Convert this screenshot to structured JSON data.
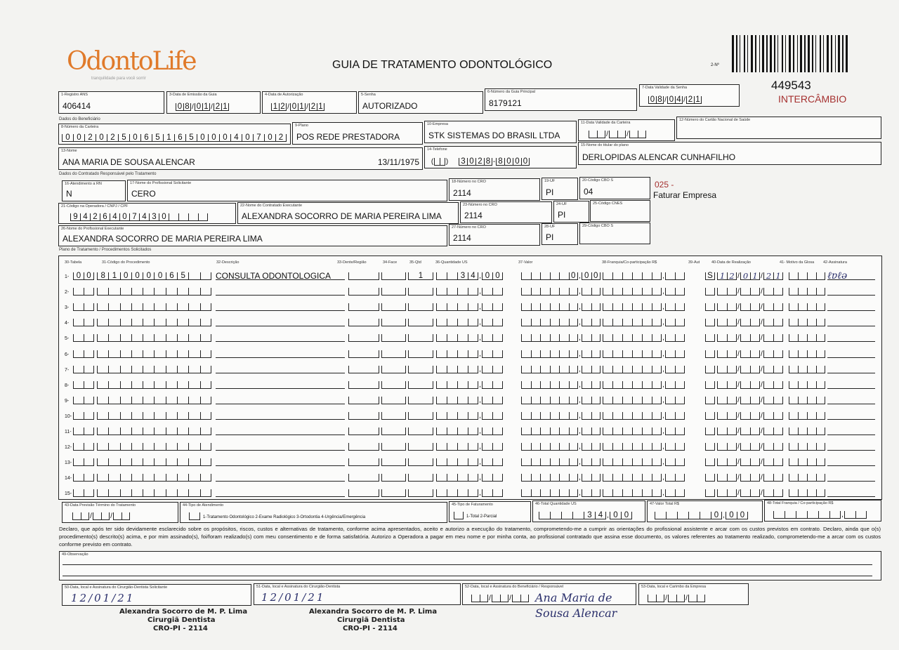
{
  "header": {
    "logo_text": "OdontoLife",
    "logo_tagline": "tranquilidade para você sorrir",
    "title": "GUIA DE TRATAMENTO ODONTOLÓGICO",
    "guia_number_label": "2-Nº",
    "guia_number": "449543",
    "intercambio": "INTERCÂMBIO",
    "accent_color": "#e07a2a",
    "intercambio_color": "#a5302f"
  },
  "fields": {
    "registro_ans": {
      "label": "1-Registro ANS",
      "value": "406414"
    },
    "data_emissao": {
      "label": "3-Data de Emissão da Guia",
      "value": [
        "08",
        "01",
        "21"
      ]
    },
    "data_autorizacao": {
      "label": "4-Data de Autorização",
      "value": [
        "12",
        "01",
        "21"
      ]
    },
    "senha": {
      "label": "5-Senha",
      "value": "AUTORIZADO"
    },
    "guia_principal": {
      "label": "6-Número da Guia Principal",
      "value": "8179121"
    },
    "validade_senha": {
      "label": "7-Data Validade da Senha",
      "value": [
        "08",
        "04",
        "21"
      ]
    },
    "section_beneficiario": "Dados do Beneficiário",
    "numero_carteira": {
      "label": "8-Número da Carteira",
      "value": "00202506516500040702"
    },
    "plano": {
      "label": "9-Plano",
      "value": "POS REDE PRESTADORA"
    },
    "empresa": {
      "label": "10-Empresa",
      "value": "STK SISTEMAS DO BRASIL LTDA"
    },
    "validade_carteira": {
      "label": "11-Data Validade da Carteira",
      "value": [
        "",
        "",
        ""
      ]
    },
    "cartao_nacional": {
      "label": "12-Número do Cartão Nacional de Saúde",
      "value": ""
    },
    "nome": {
      "label": "13-Nome",
      "value": "ANA MARIA DE SOUSA ALENCAR",
      "birth": "13/11/1975"
    },
    "telefone": {
      "label": "14-Telefone",
      "ddd": "",
      "value": "3028-8000"
    },
    "titular": {
      "label": "15-Nome do titular do plano",
      "value": "DERLOPIDAS ALENCAR CUNHAFILHO"
    },
    "section_contratado": "Dados do Contratado Responsável pelo Tratamento",
    "atendimento_rn": {
      "label": "16-Atendimento a RN",
      "value": "N"
    },
    "profissional_solicitante": {
      "label": "17-Nome do Profissional Solicitante",
      "value": "CERO"
    },
    "cro_18": {
      "label": "18-Número no CRO",
      "value": "2114"
    },
    "uf_19": {
      "label": "19-UF",
      "value": "PI"
    },
    "cbo_20": {
      "label": "20-Código CBO S",
      "value": "04"
    },
    "faturar_code": "025 -",
    "faturar_text": "Faturar Empresa",
    "codigo_operadora": {
      "label": "21-Código na Operadora / CNPJ / CPF",
      "value": "9426407430"
    },
    "contratado_executante": {
      "label": "22-Nome do Contratado Executante",
      "value": "ALEXANDRA SOCORRO DE MARIA PEREIRA LIMA"
    },
    "cro_23": {
      "label": "23-Número no CRO",
      "value": "2114"
    },
    "uf_24": {
      "label": "24-UF",
      "value": "PI"
    },
    "cnes_25": {
      "label": "25-Código CNES",
      "value": ""
    },
    "profissional_executante": {
      "label": "26-Nome do Profissional Executante",
      "value": "ALEXANDRA SOCORRO DE MARIA PEREIRA LIMA"
    },
    "cro_27": {
      "label": "27-Número no CRO",
      "value": "2114"
    },
    "uf_28": {
      "label": "28-UF",
      "value": "PI"
    },
    "cbo_29": {
      "label": "29-Código CBO S",
      "value": ""
    }
  },
  "procedures": {
    "section": "Plano de Tratamento / Procedimentos Solicitados",
    "headers": [
      "30-Tabela",
      "31-Código do Procedimento",
      "32-Descrição",
      "33-Dente/Região",
      "34-Face",
      "35-Qtd",
      "36-Quantidade US",
      "37-Valor",
      "38-Franquia/Co-participação R$",
      "39-Aut",
      "40-Data de Realização",
      "41- Motivo da Glosa",
      "42-Assinatura"
    ],
    "rows": [
      {
        "n": "1",
        "tabela": "00",
        "codigo": "81000065",
        "descricao": "CONSULTA ODONTOLOGICA",
        "dente": "",
        "face": "",
        "qtd": "1",
        "us_int": "34",
        "us_dec": "00",
        "valor_int": "0",
        "valor_dec": "00",
        "franquia_int": "",
        "franquia_dec": "",
        "aut": "S",
        "data": [
          "12",
          "01",
          "21"
        ],
        "motivo": "",
        "assinatura": "signed"
      },
      {
        "n": "2"
      },
      {
        "n": "3"
      },
      {
        "n": "4"
      },
      {
        "n": "5"
      },
      {
        "n": "6"
      },
      {
        "n": "7"
      },
      {
        "n": "8"
      },
      {
        "n": "9"
      },
      {
        "n": "10"
      },
      {
        "n": "11"
      },
      {
        "n": "12"
      },
      {
        "n": "13"
      },
      {
        "n": "14"
      },
      {
        "n": "15"
      }
    ]
  },
  "totals": {
    "previsao_termino": {
      "label": "43-Data Previsão Término do Tratamento",
      "value": [
        "",
        "",
        ""
      ]
    },
    "tipo_atendimento": {
      "label": "44-Tipo de Atendimento",
      "options": "1-Tratamento Odontológico  2-Exame Radiológico  3-Ortodontia  4-Urgência/Emergência",
      "value": ""
    },
    "tipo_faturamento": {
      "label": "45-Tipo de Faturamento",
      "options": "1-Total  2-Parcial",
      "value": ""
    },
    "total_us": {
      "label": "46-Total Quantidade US",
      "int": "34",
      "dec": "00"
    },
    "valor_total": {
      "label": "47-Valor Total R$",
      "int": "0",
      "dec": "00"
    },
    "total_franquia": {
      "label": "48-Total Franquia / Co-participação R$",
      "int": "",
      "dec": ""
    }
  },
  "declaration": "Declaro, que após ter sido devidamente esclarecido sobre os propósitos, riscos, custos e alternativas de tratamento, conforme acima apresentados, aceito e autorizo a execução do tratamento, comprometendo-me a cumprir as orientações do profissional assistente e arcar com os custos previstos em contrato. Declaro, ainda que o(s) procedimento(s) descrito(s) acima, e por mim assinado(s), foi/foram realizado(s) com meu consentimento e de forma satisfatória. Autorizo a Operadora a pagar em meu nome e por minha conta, ao profissional contratado que assina esse documento, os valores referentes ao tratamento realizado, comprometendo-me a arcar com os custos conforme previsto em contrato.",
  "observacao": {
    "label": "49-Observação",
    "value": ""
  },
  "signatures": {
    "s50": {
      "label": "50-Data, local e Assinatura do Cirurgião-Dentista Solicitante",
      "date": "12/01/21"
    },
    "s51": {
      "label": "51-Data, local e Assinatura do Cirurgião-Dentista",
      "date": "12/01/21"
    },
    "s52": {
      "label": "52-Data, local e Assinatura do Beneficiário / Responsável",
      "signature": "Ana Maria de Sousa Alencar"
    },
    "s53": {
      "label": "53-Data, local e Carimbo da Empresa"
    },
    "stamp": {
      "line1": "Alexandra Socorro de M. P. Lima",
      "line2": "Cirurgiã Dentista",
      "line3": "CRO-PI - 2114"
    }
  }
}
